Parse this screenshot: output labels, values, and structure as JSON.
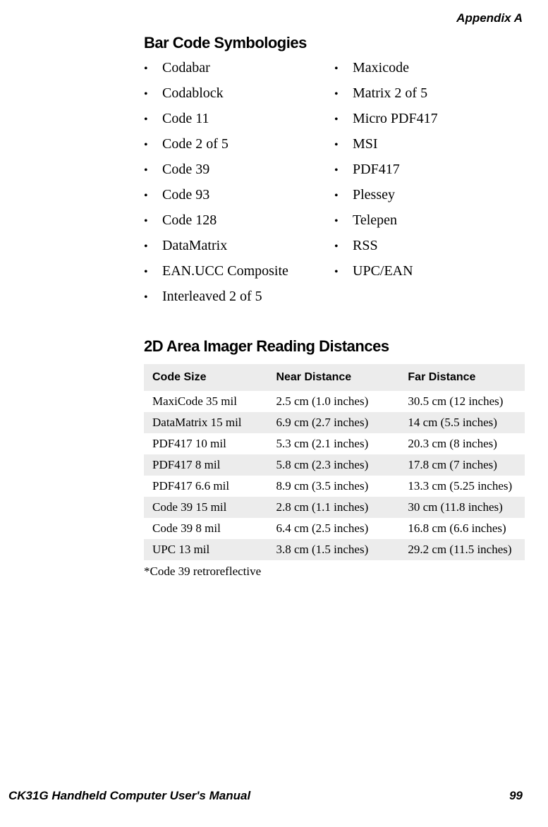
{
  "header": {
    "appendix": "Appendix A"
  },
  "symbologies": {
    "title": "Bar Code Symbologies",
    "left": [
      "Codabar",
      "Codablock",
      "Code 11",
      "Code 2 of 5",
      "Code 39",
      "Code 93",
      "Code 128",
      "DataMatrix",
      "EAN.UCC Composite",
      "Interleaved 2 of 5"
    ],
    "right": [
      "Maxicode",
      "Matrix 2 of 5",
      "Micro PDF417",
      "MSI",
      "PDF417",
      "Plessey",
      "Telepen",
      "RSS",
      "UPC/EAN"
    ]
  },
  "distances": {
    "title": "2D Area Imager Reading Distances",
    "columns": [
      "Code  Size",
      "Near Distance",
      "Far Distance"
    ],
    "rows": [
      [
        "MaxiCode 35 mil",
        "2.5 cm (1.0 inches)",
        "30.5 cm (12 inches)"
      ],
      [
        "DataMatrix 15 mil",
        "6.9 cm (2.7 inches)",
        "14 cm (5.5 inches)"
      ],
      [
        "PDF417 10 mil",
        "5.3 cm (2.1 inches)",
        "20.3 cm (8 inches)"
      ],
      [
        "PDF417 8 mil",
        "5.8 cm (2.3 inches)",
        "17.8 cm (7 inches)"
      ],
      [
        "PDF417 6.6 mil",
        "8.9 cm (3.5 inches)",
        "13.3 cm (5.25 inches)"
      ],
      [
        "Code 39 15 mil",
        "2.8 cm (1.1 inches)",
        "30 cm (11.8 inches)"
      ],
      [
        "Code 39 8 mil",
        "6.4 cm (2.5 inches)",
        "16.8 cm (6.6 inches)"
      ],
      [
        "UPC 13 mil",
        "3.8 cm (1.5 inches)",
        "29.2 cm (11.5 inches)"
      ]
    ],
    "footnote": "*Code 39 retroreflective"
  },
  "footer": {
    "manual": "CK31G Handheld Computer User's Manual",
    "page": "99"
  },
  "style": {
    "shade_color": "#ececec",
    "text_color": "#000000",
    "title_font": "Arial",
    "body_font": "Times New Roman"
  }
}
